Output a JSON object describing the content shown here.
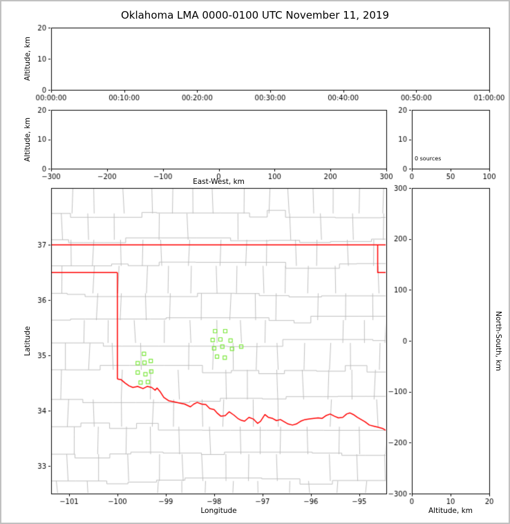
{
  "title": "Oklahoma LMA 0000-0100 UTC November 11, 2019",
  "labels": {
    "altitude_km": "Altitude, km",
    "east_west": "East-West, km",
    "longitude": "Longitude",
    "latitude": "Latitude",
    "north_south": "North-South, km",
    "sources_annotation": "0 sources"
  },
  "colors": {
    "background": "#ffffff",
    "axis": "#000000",
    "frame": "#c0c0c0",
    "county_lines": "#b9b9b9",
    "state_border": "#ff0000",
    "station_marker": "#7de83e"
  },
  "map_decor": {
    "county_seed": 11,
    "county_color": "#b9b9b9"
  },
  "chart_data": {
    "type": "scatter",
    "title": "Oklahoma LMA 0000-0100 UTC November 11, 2019",
    "total_sources": 0,
    "legend_position": "none",
    "grid": false,
    "panels": [
      {
        "name": "altitude_vs_time",
        "ylabel": "Altitude, km",
        "x_tick_labels": [
          "00:00:00",
          "00:10:00",
          "00:20:00",
          "00:30:00",
          "00:40:00",
          "00:50:00",
          "01:00:00"
        ],
        "y_ticks": [
          0,
          10,
          20
        ],
        "ylim": [
          0,
          20
        ],
        "points": []
      },
      {
        "name": "altitude_vs_east_west",
        "xlabel": "East-West, km",
        "ylabel": "Altitude, km",
        "x_ticks": [
          -300,
          -200,
          -100,
          0,
          100,
          200,
          300
        ],
        "y_ticks": [
          0,
          10,
          20
        ],
        "xlim": [
          -300,
          300
        ],
        "ylim": [
          0,
          20
        ],
        "points": []
      },
      {
        "name": "altitude_histogram",
        "annotation": "0 sources",
        "x_ticks": [
          0,
          50,
          100
        ],
        "y_ticks": [
          0,
          10,
          20
        ],
        "xlim": [
          0,
          100
        ],
        "ylim": [
          0,
          20
        ],
        "points": []
      },
      {
        "name": "map",
        "xlabel": "Longitude",
        "ylabel": "Latitude",
        "x_ticks": [
          -101,
          -100,
          -99,
          -98,
          -97,
          -96,
          -95
        ],
        "y_ticks": [
          33,
          34,
          35,
          36,
          37
        ],
        "xlim": [
          -101.37,
          -94.44
        ],
        "ylim": [
          32.5,
          38.03
        ],
        "station_markers": [
          [
            -99.45,
            35.03
          ],
          [
            -99.58,
            34.86
          ],
          [
            -99.44,
            34.87
          ],
          [
            -99.31,
            34.9
          ],
          [
            -99.58,
            34.69
          ],
          [
            -99.42,
            34.66
          ],
          [
            -99.3,
            34.71
          ],
          [
            -99.52,
            34.51
          ],
          [
            -99.37,
            34.52
          ],
          [
            -97.98,
            35.44
          ],
          [
            -97.77,
            35.44
          ],
          [
            -98.03,
            35.28
          ],
          [
            -97.87,
            35.29
          ],
          [
            -97.66,
            35.27
          ],
          [
            -98.0,
            35.13
          ],
          [
            -97.83,
            35.16
          ],
          [
            -97.63,
            35.12
          ],
          [
            -97.44,
            35.16
          ],
          [
            -97.94,
            34.98
          ],
          [
            -97.78,
            34.96
          ]
        ],
        "state_border": [
          [
            [
              -101.37,
              37.0
            ],
            [
              -94.44,
              37.0
            ]
          ],
          [
            [
              -94.618,
              37.0
            ],
            [
              -94.618,
              36.5
            ],
            [
              -94.43,
              36.5
            ],
            [
              -94.43,
              33.64
            ]
          ],
          [
            [
              -101.37,
              36.5
            ],
            [
              -100.0,
              36.5
            ]
          ],
          [
            [
              -100.0,
              36.5
            ],
            [
              -100.0,
              34.573
            ]
          ],
          [
            [
              -100.0,
              34.573
            ],
            [
              -99.92,
              34.56
            ],
            [
              -99.84,
              34.5
            ],
            [
              -99.76,
              34.45
            ],
            [
              -99.68,
              34.42
            ],
            [
              -99.58,
              34.44
            ],
            [
              -99.47,
              34.4
            ],
            [
              -99.38,
              34.44
            ],
            [
              -99.29,
              34.42
            ],
            [
              -99.22,
              34.37
            ],
            [
              -99.18,
              34.41
            ],
            [
              -99.12,
              34.35
            ],
            [
              -99.04,
              34.24
            ],
            [
              -98.94,
              34.18
            ],
            [
              -98.83,
              34.16
            ],
            [
              -98.72,
              34.14
            ],
            [
              -98.61,
              34.12
            ],
            [
              -98.49,
              34.07
            ],
            [
              -98.42,
              34.12
            ],
            [
              -98.35,
              34.15
            ],
            [
              -98.26,
              34.12
            ],
            [
              -98.17,
              34.11
            ],
            [
              -98.09,
              34.04
            ],
            [
              -98.0,
              34.02
            ],
            [
              -97.94,
              33.96
            ],
            [
              -97.86,
              33.9
            ],
            [
              -97.77,
              33.91
            ],
            [
              -97.69,
              33.98
            ],
            [
              -97.59,
              33.92
            ],
            [
              -97.51,
              33.86
            ],
            [
              -97.45,
              33.83
            ],
            [
              -97.37,
              33.81
            ],
            [
              -97.28,
              33.88
            ],
            [
              -97.19,
              33.85
            ],
            [
              -97.1,
              33.77
            ],
            [
              -97.04,
              33.81
            ],
            [
              -96.95,
              33.93
            ],
            [
              -96.88,
              33.88
            ],
            [
              -96.79,
              33.86
            ],
            [
              -96.71,
              33.82
            ],
            [
              -96.63,
              33.84
            ],
            [
              -96.55,
              33.8
            ],
            [
              -96.47,
              33.76
            ],
            [
              -96.38,
              33.74
            ],
            [
              -96.3,
              33.76
            ],
            [
              -96.21,
              33.81
            ],
            [
              -96.12,
              33.84
            ],
            [
              -96.03,
              33.85
            ],
            [
              -95.94,
              33.86
            ],
            [
              -95.85,
              33.87
            ],
            [
              -95.77,
              33.86
            ],
            [
              -95.69,
              33.91
            ],
            [
              -95.6,
              33.94
            ],
            [
              -95.51,
              33.9
            ],
            [
              -95.43,
              33.87
            ],
            [
              -95.34,
              33.88
            ],
            [
              -95.26,
              33.94
            ],
            [
              -95.19,
              33.96
            ],
            [
              -95.12,
              33.93
            ],
            [
              -95.04,
              33.88
            ],
            [
              -94.96,
              33.84
            ],
            [
              -94.88,
              33.8
            ],
            [
              -94.79,
              33.74
            ],
            [
              -94.7,
              33.72
            ],
            [
              -94.61,
              33.7
            ],
            [
              -94.52,
              33.68
            ],
            [
              -94.44,
              33.64
            ]
          ]
        ]
      },
      {
        "name": "north_south_vs_altitude",
        "xlabel": "Altitude, km",
        "ylabel_right": "North-South, km",
        "x_ticks": [
          0,
          10,
          20
        ],
        "y_ticks": [
          300,
          200,
          100,
          0,
          -100,
          -200,
          -300
        ],
        "xlim": [
          0,
          20
        ],
        "ylim": [
          -300,
          300
        ],
        "points": []
      }
    ]
  }
}
